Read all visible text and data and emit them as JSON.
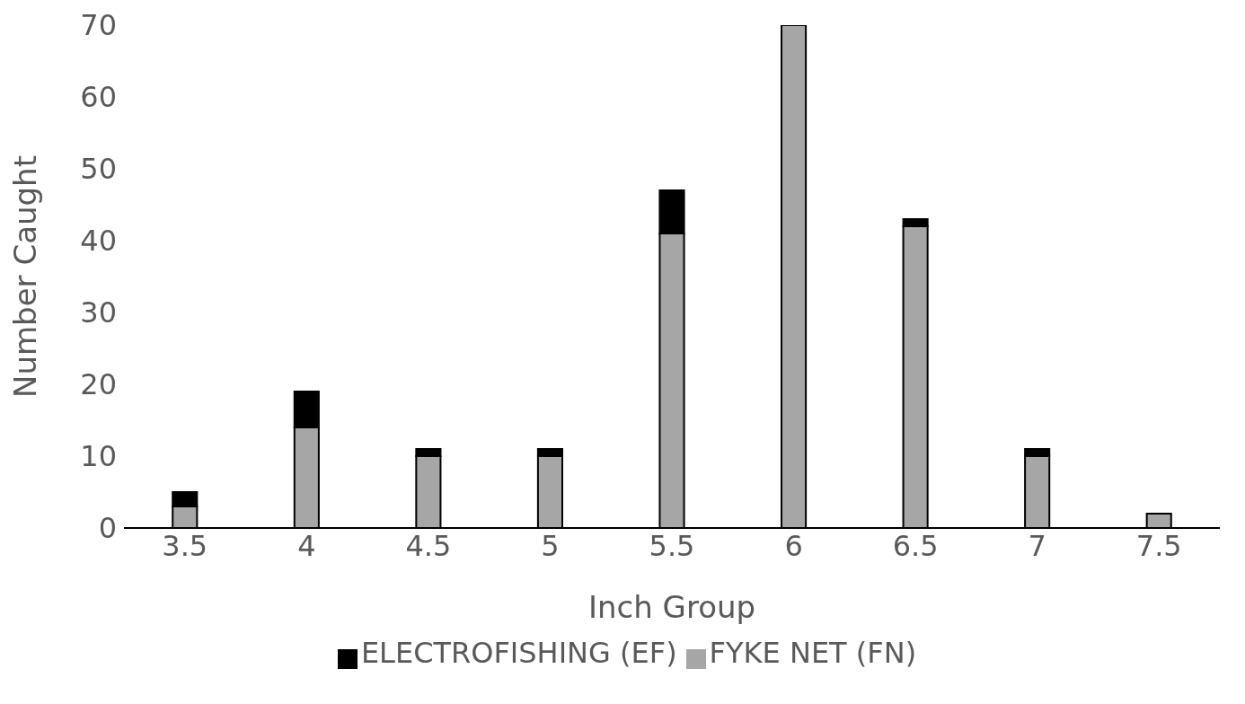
{
  "chart_data": {
    "type": "bar",
    "stacked": true,
    "xlabel": "Inch Group",
    "ylabel": "Number Caught",
    "categories": [
      "3.5",
      "4",
      "4.5",
      "5",
      "5.5",
      "6",
      "6.5",
      "7",
      "7.5"
    ],
    "series": [
      {
        "name": "FYKE NET (FN)",
        "color": "#a6a6a6",
        "values": [
          3,
          14,
          10,
          10,
          41,
          70,
          42,
          10,
          2
        ]
      },
      {
        "name": "ELECTROFISHING (EF)",
        "color": "#000000",
        "values": [
          2,
          5,
          1,
          1,
          6,
          0,
          1,
          1,
          0
        ]
      }
    ],
    "ylim": [
      0,
      70
    ],
    "yticks": [
      0,
      10,
      20,
      30,
      40,
      50,
      60,
      70
    ],
    "grid": false,
    "legend": "bottom"
  }
}
